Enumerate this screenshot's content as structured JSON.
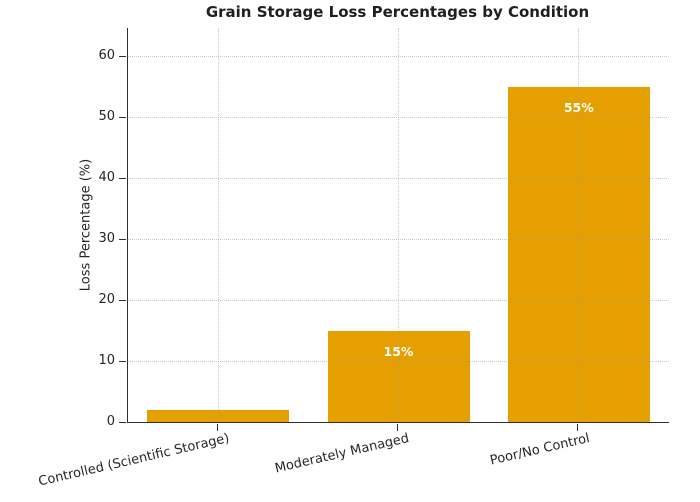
{
  "chart_data": {
    "type": "bar",
    "title": "Grain Storage Loss Percentages by Condition",
    "xlabel": "",
    "ylabel": "Loss Percentage (%)",
    "categories": [
      "Controlled (Scientific Storage)",
      "Moderately Managed",
      "Poor/No Control"
    ],
    "values": [
      2,
      15,
      55
    ],
    "bar_labels": [
      "",
      "15%",
      "55%"
    ],
    "yticks": [
      0,
      10,
      20,
      30,
      40,
      50,
      60
    ],
    "ylim": [
      0,
      64.6
    ],
    "legend": "none",
    "grid": "both",
    "grid_style": "dotted",
    "colors": {
      "bar": "#E69F00",
      "bar_label_text": "#ffffff",
      "grid": "#cfcfcf",
      "spine": "#2e2e2e",
      "text": "#262626",
      "background": "#ffffff"
    },
    "x_label_rotation_deg": -13
  }
}
